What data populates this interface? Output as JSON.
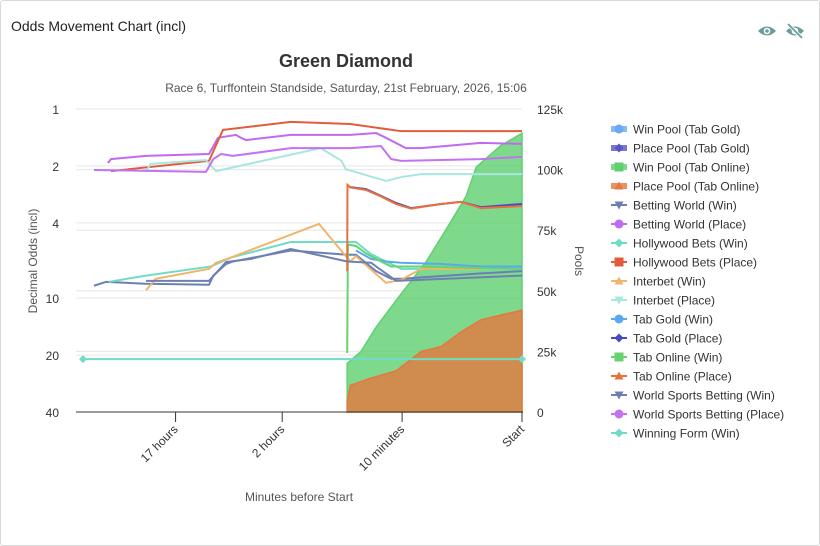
{
  "card": {
    "title": "Odds Movement Chart (incl)",
    "icons": [
      "eye-icon",
      "eye-off-icon"
    ],
    "icon_color": "#6a9c9c"
  },
  "chart_data": {
    "type": "line",
    "title": "Green Diamond",
    "subtitle": "Race 6, Turffontein Standside, Saturday, 21st February, 2026, 15:06",
    "xlabel": "Minutes before Start",
    "ylabel": "Decimal Odds (incl)",
    "y2label": "Pools",
    "x_ticks": [
      {
        "minutes": 1020,
        "label": "17 hours"
      },
      {
        "minutes": 120,
        "label": "2 hours"
      },
      {
        "minutes": 10,
        "label": "10 minutes"
      },
      {
        "minutes": 0,
        "label": "Start"
      }
    ],
    "x_scale": "log (minutes before start)",
    "y_scale": "log",
    "y_ticks": [
      1,
      2,
      4,
      10,
      20,
      40
    ],
    "ylim": [
      1,
      40
    ],
    "y2_ticks": [
      "0",
      "25k",
      "50k",
      "75k",
      "100k",
      "125k"
    ],
    "y2lim": [
      0,
      125000
    ],
    "grid": true,
    "legend_position": "right",
    "series": [
      {
        "name": "Win Pool (Tab Gold)",
        "axis": "pools",
        "kind": "area",
        "marker": "circle",
        "color": "#6aaaf0",
        "points": []
      },
      {
        "name": "Place Pool (Tab Gold)",
        "axis": "pools",
        "kind": "area",
        "marker": "diamond",
        "color": "#5656c4",
        "points": []
      },
      {
        "name": "Win Pool (Tab Online)",
        "axis": "pools",
        "kind": "area",
        "marker": "square",
        "color": "#5fd070",
        "points": [
          [
            32,
            20000
          ],
          [
            24,
            25000
          ],
          [
            17.5,
            35000
          ],
          [
            11.4,
            46000
          ],
          [
            8.2,
            54000
          ],
          [
            5.8,
            62000
          ],
          [
            3.6,
            75000
          ],
          [
            2.06,
            89000
          ],
          [
            1.5,
            101000
          ],
          [
            0.52,
            110000
          ],
          [
            0,
            115000
          ]
        ]
      },
      {
        "name": "Place Pool (Tab Online)",
        "axis": "pools",
        "kind": "area",
        "marker": "triangle",
        "color": "#e5773f",
        "points": [
          [
            32,
            4500
          ],
          [
            30,
            11000
          ],
          [
            19.5,
            14000
          ],
          [
            11.4,
            17000
          ],
          [
            6.5,
            25000
          ],
          [
            4.05,
            27000
          ],
          [
            2.4,
            33000
          ],
          [
            1.27,
            38000
          ],
          [
            0.52,
            40000
          ],
          [
            0,
            42000
          ]
        ]
      },
      {
        "name": "Betting World (Win)",
        "axis": "odds",
        "marker": "triangle-down",
        "color": "#6b7fb5",
        "points": [
          [
            5220,
            8.6
          ],
          [
            4100,
            8.2
          ],
          [
            1845,
            8.4
          ],
          [
            522,
            8.5
          ],
          [
            479,
            7.6
          ],
          [
            371,
            6.6
          ],
          [
            323,
            6.4
          ],
          [
            101,
            5.6
          ],
          [
            32,
            5.9
          ],
          [
            26.7,
            5.9
          ],
          [
            17.5,
            7.2
          ],
          [
            12.7,
            7.9
          ],
          [
            10.2,
            7.9
          ],
          [
            1.27,
            7.4
          ],
          [
            0,
            7.2
          ]
        ]
      },
      {
        "name": "Betting World (Place)",
        "axis": "odds",
        "marker": "circle",
        "color": "#c06af0",
        "points": [
          [
            3950,
            1.93
          ],
          [
            3716,
            1.84
          ],
          [
            1845,
            1.77
          ],
          [
            522,
            1.73
          ],
          [
            436,
            1.42
          ],
          [
            304,
            1.37
          ],
          [
            275,
            1.42
          ],
          [
            249,
            1.46
          ],
          [
            101,
            1.37
          ],
          [
            30,
            1.37
          ],
          [
            17.5,
            1.34
          ],
          [
            14.2,
            1.42
          ],
          [
            9.2,
            1.61
          ],
          [
            6.5,
            1.61
          ],
          [
            1.27,
            1.51
          ],
          [
            0,
            1.53
          ]
        ]
      },
      {
        "name": "Hollywood Bets (Win)",
        "axis": "odds",
        "marker": "diamond",
        "color": "#6fdcc8",
        "points": [
          [
            3880,
            8.2
          ],
          [
            1845,
            7.6
          ],
          [
            502,
            6.8
          ],
          [
            336,
            6.1
          ],
          [
            101,
            5.05
          ],
          [
            32,
            5.05
          ],
          [
            26.7,
            5.05
          ],
          [
            19.5,
            5.85
          ],
          [
            10.2,
            7.0
          ],
          [
            0,
            7.0
          ]
        ]
      },
      {
        "name": "Hollywood Bets (Place)",
        "axis": "odds",
        "marker": "square",
        "color": "#e25c3b",
        "points": [
          [
            3716,
            2.13
          ],
          [
            522,
            1.88
          ],
          [
            395,
            1.29
          ],
          [
            101,
            1.17
          ],
          [
            30,
            1.2
          ],
          [
            10.2,
            1.31
          ],
          [
            0,
            1.31
          ]
        ]
      },
      {
        "name": "Interbet (Win)",
        "axis": "odds",
        "marker": "triangle",
        "color": "#f0b46b",
        "points": [
          [
            1845,
            9.1
          ],
          [
            1517,
            7.9
          ],
          [
            522,
            7.0
          ],
          [
            454,
            6.5
          ],
          [
            336,
            6.1
          ],
          [
            57,
            4.05
          ],
          [
            30,
            6.4
          ],
          [
            26.7,
            6.0
          ],
          [
            14.2,
            8.3
          ],
          [
            10.2,
            8.0
          ],
          [
            6.5,
            7.0
          ],
          [
            1.27,
            7.0
          ]
        ]
      },
      {
        "name": "Interbet (Place)",
        "axis": "odds",
        "marker": "triangle-down",
        "color": "#a8e6e0",
        "points": [
          [
            1845,
            2.13
          ],
          [
            1670,
            1.95
          ],
          [
            555,
            1.86
          ],
          [
            454,
            2.13
          ],
          [
            55,
            1.61
          ],
          [
            36,
            1.88
          ],
          [
            33,
            2.08
          ],
          [
            14.2,
            2.4
          ],
          [
            10.2,
            2.29
          ],
          [
            6.5,
            2.21
          ],
          [
            0,
            2.21
          ]
        ]
      },
      {
        "name": "Tab Gold (Win)",
        "axis": "odds",
        "marker": "circle",
        "color": "#5aa8f0",
        "points": [
          [
            26.7,
            5.6
          ],
          [
            19.5,
            6.2
          ],
          [
            14.2,
            6.4
          ],
          [
            10.2,
            6.5
          ],
          [
            4.05,
            6.6
          ],
          [
            1.27,
            6.8
          ],
          [
            0,
            6.8
          ]
        ]
      },
      {
        "name": "Tab Gold (Place)",
        "axis": "odds",
        "marker": "diamond",
        "color": "#4b4bc0",
        "points": [
          [
            32,
            2.52
          ],
          [
            30,
            2.59
          ],
          [
            21.6,
            2.65
          ],
          [
            15.8,
            2.88
          ],
          [
            11.4,
            3.14
          ],
          [
            8.2,
            3.34
          ],
          [
            4.05,
            3.18
          ],
          [
            2.4,
            3.1
          ],
          [
            1.27,
            3.3
          ],
          [
            0,
            3.18
          ]
        ]
      },
      {
        "name": "Tab Online (Win)",
        "axis": "odds",
        "marker": "square",
        "color": "#66d36e",
        "points": [
          [
            32,
            19.5
          ],
          [
            31.5,
            5.2
          ],
          [
            26.7,
            5.3
          ],
          [
            21.6,
            5.8
          ],
          [
            15.8,
            6.4
          ],
          [
            12.7,
            6.8
          ],
          [
            10.2,
            6.8
          ],
          [
            6.5,
            6.8
          ],
          [
            2.4,
            6.9
          ],
          [
            0,
            7.0
          ]
        ]
      },
      {
        "name": "Tab Online (Place)",
        "axis": "odds",
        "marker": "triangle",
        "color": "#e8703a",
        "points": [
          [
            32,
            7.2
          ],
          [
            31.8,
            2.52
          ],
          [
            30,
            2.6
          ],
          [
            21.6,
            2.68
          ],
          [
            15.8,
            2.9
          ],
          [
            11.4,
            3.18
          ],
          [
            8.2,
            3.36
          ],
          [
            4.05,
            3.18
          ],
          [
            2.4,
            3.1
          ],
          [
            1.27,
            3.34
          ],
          [
            0,
            3.26
          ]
        ]
      },
      {
        "name": "World Sports Betting (Win)",
        "axis": "odds",
        "marker": "triangle-down",
        "color": "#6f80b0",
        "points": [
          [
            1845,
            8.1
          ],
          [
            522,
            8.1
          ],
          [
            371,
            6.45
          ],
          [
            225,
            6.2
          ],
          [
            101,
            5.5
          ],
          [
            32,
            6.4
          ],
          [
            19.5,
            6.5
          ],
          [
            11.4,
            8.1
          ],
          [
            0,
            7.6
          ]
        ]
      },
      {
        "name": "World Sports Betting (Place)",
        "axis": "odds",
        "marker": "circle",
        "color": "#c272f2",
        "points": [
          [
            5220,
            2.1
          ],
          [
            555,
            2.15
          ],
          [
            479,
            1.84
          ],
          [
            410,
            1.73
          ],
          [
            323,
            1.77
          ],
          [
            101,
            1.61
          ],
          [
            30,
            1.61
          ],
          [
            15.8,
            1.57
          ],
          [
            12.7,
            1.84
          ],
          [
            10.2,
            1.88
          ],
          [
            1.27,
            1.84
          ],
          [
            0,
            1.79
          ]
        ]
      },
      {
        "name": "Winning Form (Win)",
        "axis": "odds",
        "marker": "diamond",
        "color": "#6fdcc8",
        "points": [
          [
            6500,
            21
          ],
          [
            0,
            21
          ]
        ]
      }
    ]
  }
}
